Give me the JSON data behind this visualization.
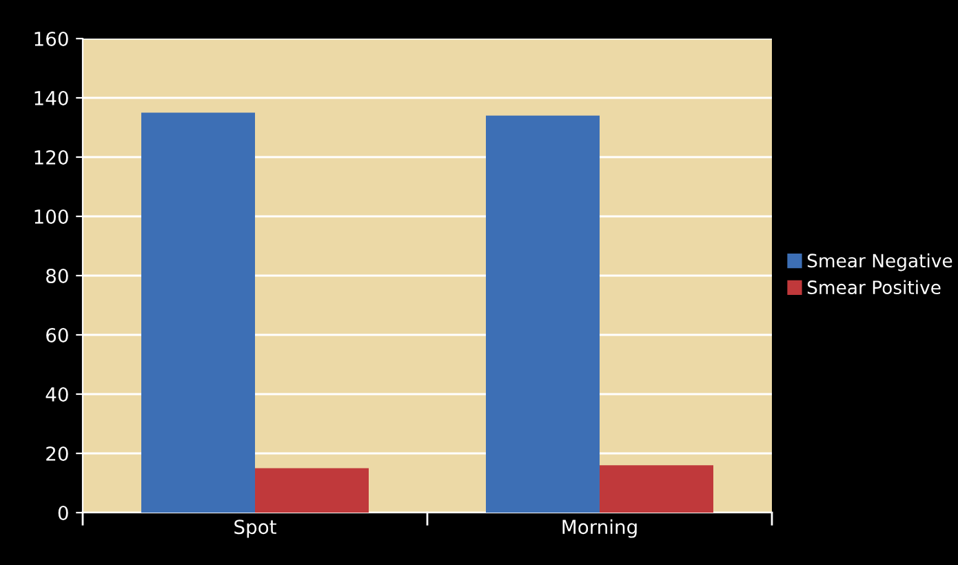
{
  "chart_data": {
    "type": "bar",
    "categories": [
      "Spot",
      "Morning"
    ],
    "series": [
      {
        "name": "Smear Negative",
        "color": "#3d6fb5",
        "values": [
          135,
          134
        ]
      },
      {
        "name": "Smear Positive",
        "color": "#c0393b",
        "values": [
          15,
          16
        ]
      }
    ],
    "ylim": [
      0,
      160
    ],
    "yticks": [
      0,
      20,
      40,
      60,
      80,
      100,
      120,
      140,
      160
    ],
    "grid": "y",
    "legend": "right"
  }
}
